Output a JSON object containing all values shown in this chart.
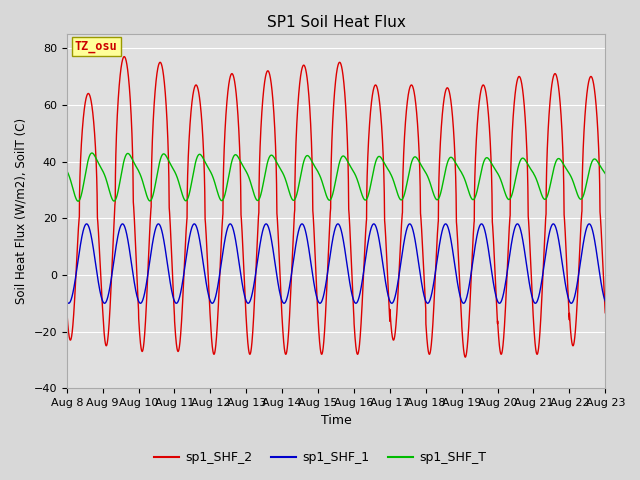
{
  "title": "SP1 Soil Heat Flux",
  "xlabel": "Time",
  "ylabel": "Soil Heat Flux (W/m2), SoilT (C)",
  "ylim": [
    -40,
    85
  ],
  "tz_label": "TZ_osu",
  "x_tick_labels": [
    "Aug 8",
    "Aug 9",
    "Aug 10",
    "Aug 11",
    "Aug 12",
    "Aug 13",
    "Aug 14",
    "Aug 15",
    "Aug 16",
    "Aug 17",
    "Aug 18",
    "Aug 19",
    "Aug 20",
    "Aug 21",
    "Aug 22",
    "Aug 23"
  ],
  "legend": [
    "sp1_SHF_2",
    "sp1_SHF_1",
    "sp1_SHF_T"
  ],
  "colors": {
    "sp1_SHF_2": "#dd0000",
    "sp1_SHF_1": "#0000cc",
    "sp1_SHF_T": "#00bb00"
  },
  "background_color": "#d8d8d8",
  "plot_bg_color": "#e0e0e0",
  "grid_color": "#ffffff",
  "n_days": 15,
  "samples_per_day": 960,
  "yticks": [
    -40,
    -20,
    0,
    20,
    40,
    60,
    80
  ]
}
